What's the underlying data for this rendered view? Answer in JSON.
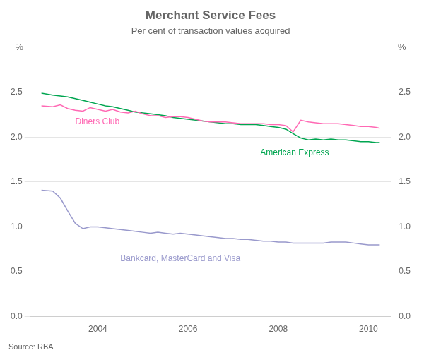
{
  "chart_data": {
    "type": "line",
    "title": "Merchant Service Fees",
    "subtitle": "Per cent of transaction values acquired",
    "source": "Source: RBA",
    "y_label": "%",
    "y2_label": "%",
    "xlim": [
      2002.5,
      2010.5
    ],
    "xticks": [
      2004,
      2006,
      2008,
      2010
    ],
    "ylim": [
      0.0,
      2.9
    ],
    "yticks": [
      {
        "value": 0,
        "label": "0.0"
      },
      0.5,
      {
        "value": 1,
        "label": "1.0"
      },
      1.5,
      {
        "value": 2,
        "label": "2.0"
      },
      2.5
    ],
    "y2lim": [
      0.0,
      2.9
    ],
    "y2ticks": [
      {
        "value": 0,
        "label": "0.0"
      },
      0.5,
      {
        "value": 1,
        "label": "1.0"
      },
      1.5,
      {
        "value": 2,
        "label": "2.0"
      },
      2.5
    ],
    "grid": "y",
    "series": [
      {
        "name": "Diners Club",
        "color": "#ff69b4",
        "x": [
          2002.75,
          2003.0,
          2003.17,
          2003.33,
          2003.5,
          2003.67,
          2003.83,
          2004.0,
          2004.17,
          2004.33,
          2004.5,
          2004.67,
          2004.83,
          2005.0,
          2005.17,
          2005.33,
          2005.5,
          2005.67,
          2005.83,
          2006.0,
          2006.17,
          2006.33,
          2006.5,
          2006.67,
          2006.83,
          2007.0,
          2007.17,
          2007.33,
          2007.5,
          2007.67,
          2007.83,
          2008.0,
          2008.17,
          2008.33,
          2008.5,
          2008.67,
          2008.83,
          2009.0,
          2009.17,
          2009.33,
          2009.5,
          2009.67,
          2009.83,
          2010.0,
          2010.17,
          2010.25
        ],
        "values": [
          2.35,
          2.34,
          2.36,
          2.32,
          2.3,
          2.29,
          2.33,
          2.31,
          2.29,
          2.31,
          2.28,
          2.27,
          2.29,
          2.26,
          2.24,
          2.24,
          2.22,
          2.23,
          2.23,
          2.22,
          2.2,
          2.18,
          2.17,
          2.17,
          2.17,
          2.16,
          2.15,
          2.15,
          2.15,
          2.15,
          2.14,
          2.14,
          2.13,
          2.06,
          2.19,
          2.17,
          2.16,
          2.15,
          2.15,
          2.15,
          2.14,
          2.13,
          2.12,
          2.12,
          2.11,
          2.1
        ]
      },
      {
        "name": "American Express",
        "color": "#00a550",
        "x": [
          2002.75,
          2003.0,
          2003.17,
          2003.33,
          2003.5,
          2003.67,
          2003.83,
          2004.0,
          2004.17,
          2004.33,
          2004.5,
          2004.67,
          2004.83,
          2005.0,
          2005.17,
          2005.33,
          2005.5,
          2005.67,
          2005.83,
          2006.0,
          2006.17,
          2006.33,
          2006.5,
          2006.67,
          2006.83,
          2007.0,
          2007.17,
          2007.33,
          2007.5,
          2007.67,
          2007.83,
          2008.0,
          2008.17,
          2008.33,
          2008.5,
          2008.67,
          2008.83,
          2009.0,
          2009.17,
          2009.33,
          2009.5,
          2009.67,
          2009.83,
          2010.0,
          2010.17,
          2010.25
        ],
        "values": [
          2.49,
          2.47,
          2.46,
          2.45,
          2.43,
          2.41,
          2.39,
          2.37,
          2.35,
          2.34,
          2.32,
          2.3,
          2.28,
          2.27,
          2.26,
          2.25,
          2.24,
          2.22,
          2.21,
          2.2,
          2.19,
          2.18,
          2.17,
          2.16,
          2.15,
          2.15,
          2.14,
          2.14,
          2.14,
          2.13,
          2.12,
          2.11,
          2.09,
          2.04,
          1.99,
          1.97,
          1.98,
          1.97,
          1.98,
          1.97,
          1.97,
          1.96,
          1.95,
          1.95,
          1.94,
          1.94
        ]
      },
      {
        "name": "Bankcard, MasterCard and Visa",
        "color": "#9999cc",
        "x": [
          2002.75,
          2003.0,
          2003.17,
          2003.33,
          2003.5,
          2003.67,
          2003.83,
          2004.0,
          2004.17,
          2004.33,
          2004.5,
          2004.67,
          2004.83,
          2005.0,
          2005.17,
          2005.33,
          2005.5,
          2005.67,
          2005.83,
          2006.0,
          2006.17,
          2006.33,
          2006.5,
          2006.67,
          2006.83,
          2007.0,
          2007.17,
          2007.33,
          2007.5,
          2007.67,
          2007.83,
          2008.0,
          2008.17,
          2008.33,
          2008.5,
          2008.67,
          2008.83,
          2009.0,
          2009.17,
          2009.33,
          2009.5,
          2009.67,
          2009.83,
          2010.0,
          2010.17,
          2010.25
        ],
        "values": [
          1.41,
          1.4,
          1.32,
          1.18,
          1.04,
          0.98,
          1.0,
          1.0,
          0.99,
          0.98,
          0.97,
          0.96,
          0.95,
          0.94,
          0.93,
          0.94,
          0.93,
          0.92,
          0.93,
          0.92,
          0.91,
          0.9,
          0.89,
          0.88,
          0.87,
          0.87,
          0.86,
          0.86,
          0.85,
          0.84,
          0.84,
          0.83,
          0.83,
          0.82,
          0.82,
          0.82,
          0.82,
          0.82,
          0.83,
          0.83,
          0.83,
          0.82,
          0.81,
          0.8,
          0.8,
          0.8
        ]
      }
    ],
    "annotations": [
      {
        "text": "Diners Club",
        "x": 2003.5,
        "y": 2.22,
        "color": "#ff69b4"
      },
      {
        "text": "American Express",
        "x": 2007.6,
        "y": 1.87,
        "color": "#00a550"
      },
      {
        "text": "Bankcard, MasterCard and Visa",
        "x": 2004.5,
        "y": 0.69,
        "color": "#9999cc"
      }
    ]
  }
}
